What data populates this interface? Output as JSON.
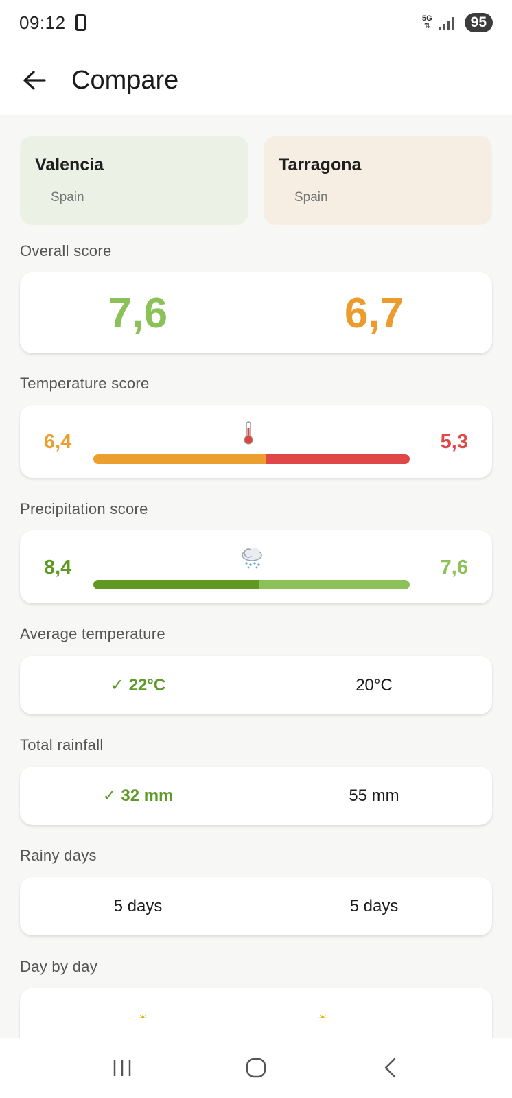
{
  "status": {
    "time": "09:12",
    "network": "5G",
    "battery": "95"
  },
  "header": {
    "title": "Compare"
  },
  "cities": [
    {
      "name": "Valencia",
      "country": "Spain"
    },
    {
      "name": "Tarragona",
      "country": "Spain"
    }
  ],
  "overall": {
    "label": "Overall score",
    "left": "7,6",
    "right": "6,7",
    "left_color": "#8cc15a",
    "right_color": "#eb9c2c"
  },
  "temperature_score": {
    "label": "Temperature score",
    "left": "6,4",
    "right": "5,3",
    "left_value": 6.4,
    "right_value": 5.3,
    "left_color": "#eb9f2f",
    "right_color": "#e04848",
    "icon": "thermometer-icon"
  },
  "precipitation_score": {
    "label": "Precipitation score",
    "left": "8,4",
    "right": "7,6",
    "left_value": 8.4,
    "right_value": 7.6,
    "left_color": "#5e9a22",
    "right_color": "#8cc15a",
    "icon": "rain-cloud-icon"
  },
  "average_temperature": {
    "label": "Average temperature",
    "left": "✓ 22°C",
    "right": "20°C",
    "better": "left"
  },
  "total_rainfall": {
    "label": "Total rainfall",
    "left": "✓ 32 mm",
    "right": "55 mm",
    "better": "left"
  },
  "rainy_days": {
    "label": "Rainy days",
    "left": "5 days",
    "right": "5 days",
    "better": "none"
  },
  "day_by_day": {
    "label": "Day by day"
  },
  "nav": {
    "icons": [
      "recent-apps-icon",
      "home-icon",
      "back-icon"
    ]
  }
}
